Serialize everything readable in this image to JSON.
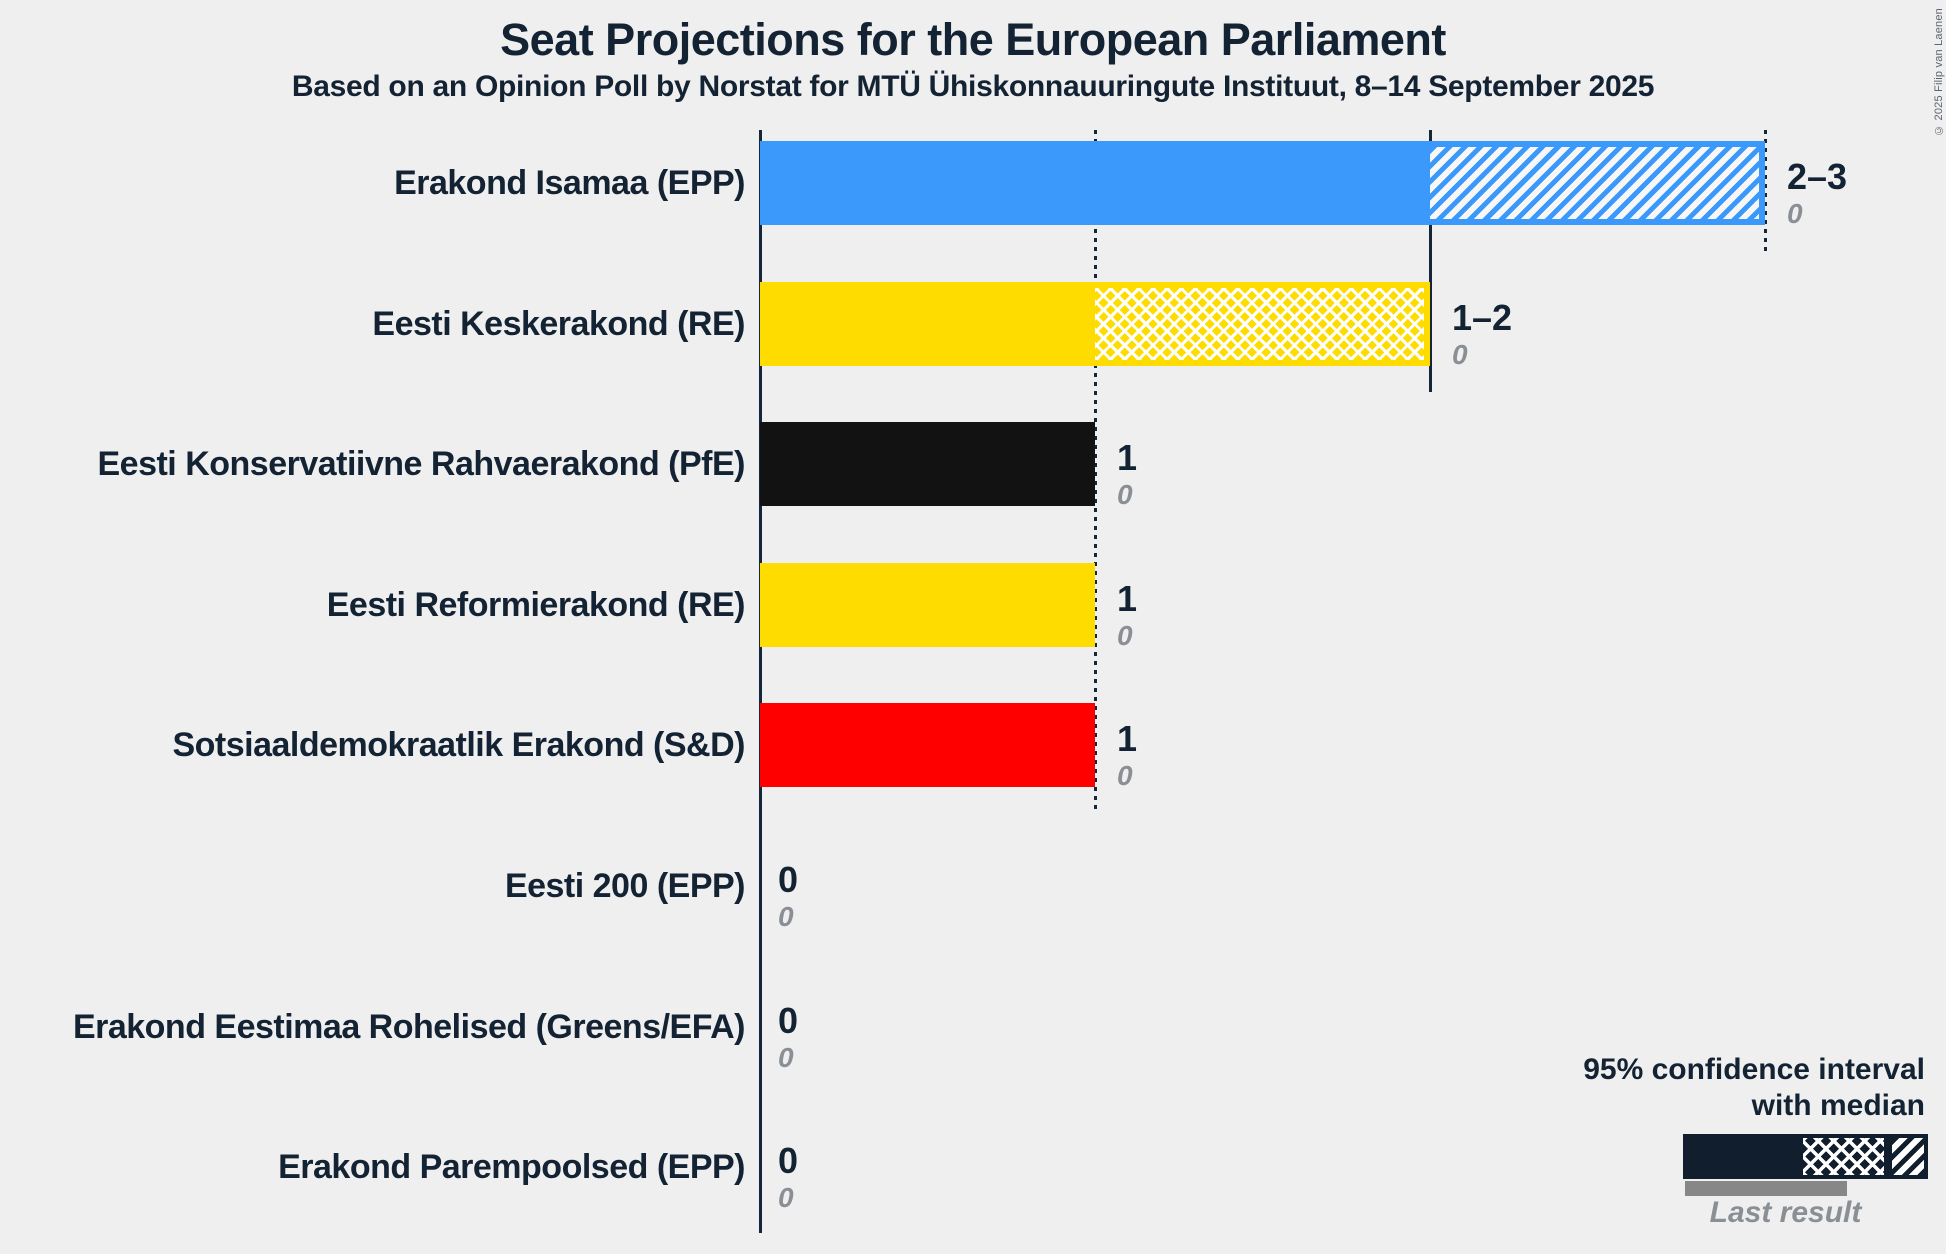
{
  "title": "Seat Projections for the European Parliament",
  "subtitle": "Based on an Opinion Poll by Norstat for MTÜ Ühiskonnauuringute Instituut, 8–14 September 2025",
  "copyright": "© 2025 Filip van Laenen",
  "legend": {
    "ci_line1": "95% confidence interval",
    "ci_line2": "with median",
    "last_result": "Last result"
  },
  "colors": {
    "background": "#efefef",
    "text": "#142333",
    "axis": "#16263a",
    "muted_gray": "#8a8f96",
    "last_result_bar": "#878787",
    "isamaa_blue": "#3b99fb",
    "keskerakond_yellow": "#ffdc00",
    "ekre_black": "#121212",
    "reform_yellow": "#ffdc00",
    "sde_red": "#ff0000"
  },
  "chart_data": {
    "type": "bar",
    "orientation": "horizontal",
    "unit": "seats",
    "title": "Seat Projections for the European Parliament",
    "x_axis": {
      "min": 0,
      "max": 3,
      "gridlines": [
        {
          "value": 1,
          "style": "dotted"
        },
        {
          "value": 2,
          "style": "solid"
        },
        {
          "value": 3,
          "style": "dotted"
        }
      ]
    },
    "legend_position": "bottom-right",
    "rows": [
      {
        "party": "Erakond Isamaa (EPP)",
        "color": "#3b99fb",
        "ci_low": 2,
        "median": 2,
        "ci_high": 3,
        "label": "2–3",
        "last_result": "0"
      },
      {
        "party": "Eesti Keskerakond (RE)",
        "color": "#ffdc00",
        "ci_low": 1,
        "median": 2,
        "ci_high": 2,
        "label": "1–2",
        "last_result": "0"
      },
      {
        "party": "Eesti Konservatiivne Rahvaerakond (PfE)",
        "color": "#121212",
        "ci_low": 1,
        "median": 1,
        "ci_high": 1,
        "label": "1",
        "last_result": "0"
      },
      {
        "party": "Eesti Reformierakond (RE)",
        "color": "#ffdc00",
        "ci_low": 1,
        "median": 1,
        "ci_high": 1,
        "label": "1",
        "last_result": "0"
      },
      {
        "party": "Sotsiaaldemokraatlik Erakond (S&D)",
        "color": "#ff0000",
        "ci_low": 1,
        "median": 1,
        "ci_high": 1,
        "label": "1",
        "last_result": "0"
      },
      {
        "party": "Eesti 200 (EPP)",
        "ci_low": 0,
        "median": 0,
        "ci_high": 0,
        "label": "0",
        "last_result": "0"
      },
      {
        "party": "Erakond Eestimaa Rohelised (Greens/EFA)",
        "ci_low": 0,
        "median": 0,
        "ci_high": 0,
        "label": "0",
        "last_result": "0"
      },
      {
        "party": "Erakond Parempoolsed (EPP)",
        "ci_low": 0,
        "median": 0,
        "ci_high": 0,
        "label": "0",
        "last_result": "0"
      }
    ]
  }
}
